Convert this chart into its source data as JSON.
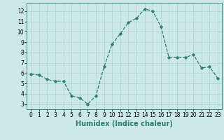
{
  "xlabel": "Humidex (Indice chaleur)",
  "x": [
    0,
    1,
    2,
    3,
    4,
    5,
    6,
    7,
    8,
    9,
    10,
    11,
    12,
    13,
    14,
    15,
    16,
    17,
    18,
    19,
    20,
    21,
    22,
    23
  ],
  "y": [
    5.9,
    5.8,
    5.4,
    5.2,
    5.2,
    3.8,
    3.6,
    3.0,
    3.8,
    6.6,
    8.8,
    9.8,
    10.9,
    11.3,
    12.2,
    12.0,
    10.5,
    7.5,
    7.5,
    7.5,
    7.8,
    6.5,
    6.6,
    5.5
  ],
  "line_color": "#2e7d6e",
  "marker": "D",
  "marker_size": 1.8,
  "bg_color": "#cce8e8",
  "grid_color": "#aad0d0",
  "ylim": [
    2.5,
    12.8
  ],
  "yticks": [
    3,
    4,
    5,
    6,
    7,
    8,
    9,
    10,
    11,
    12
  ],
  "xticks": [
    0,
    1,
    2,
    3,
    4,
    5,
    6,
    7,
    8,
    9,
    10,
    11,
    12,
    13,
    14,
    15,
    16,
    17,
    18,
    19,
    20,
    21,
    22,
    23
  ],
  "tick_fontsize": 5.5,
  "label_fontsize": 7.0,
  "line_width": 0.9
}
